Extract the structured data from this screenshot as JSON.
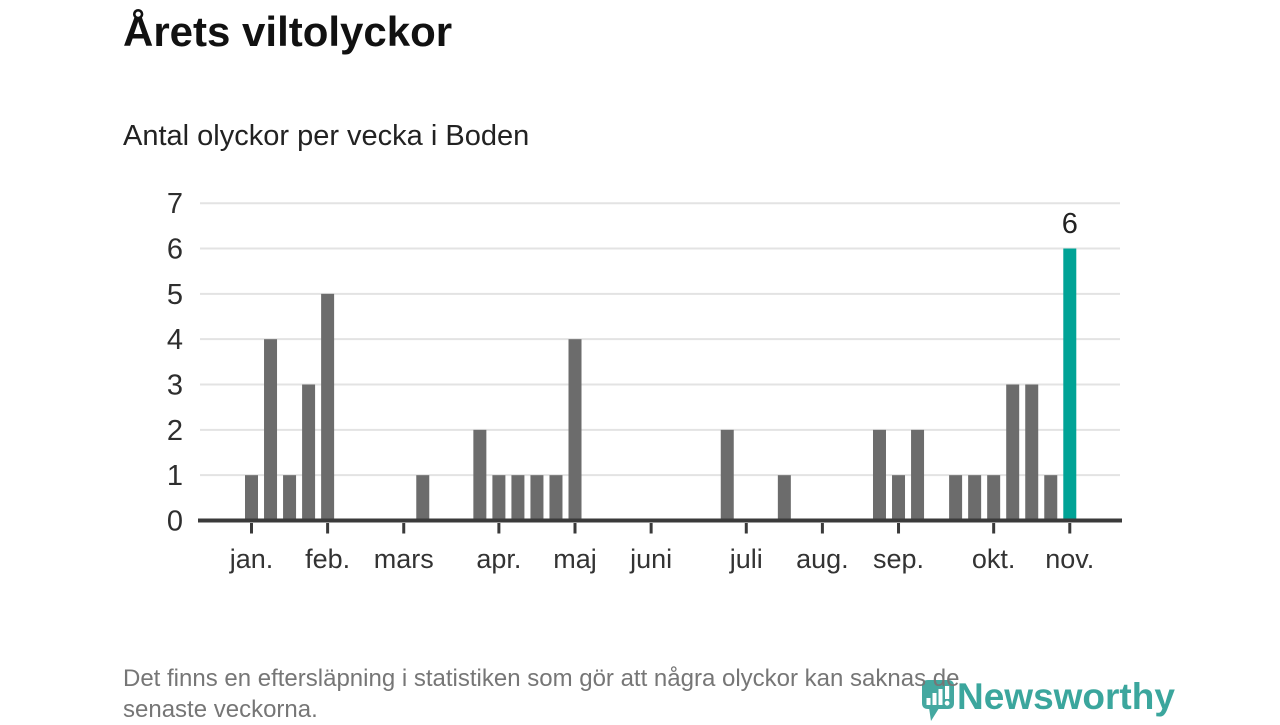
{
  "title": "Årets viltolyckor",
  "subtitle": "Antal olyckor per vecka i Boden",
  "footer": {
    "line1": "Det finns en eftersläpning i statistiken som gör att några olyckor kan saknas de",
    "line2": "senaste veckorna."
  },
  "logo": {
    "text": "Newsworthy",
    "icon": "newsworthy-pin-barchart-icon"
  },
  "colors": {
    "bar": "#6c6c6c",
    "highlight": "#00a396",
    "axis": "#3a3a3a",
    "grid": "#e3e3e3",
    "tick_label": "#2e2e2e",
    "annotation": "#222222",
    "logo": "#3ba69d",
    "footer_text": "#767676"
  },
  "chart_data": {
    "type": "bar",
    "title": "Årets viltolyckor",
    "subtitle": "Antal olyckor per vecka i Boden",
    "x_unit": "week",
    "values": [
      1,
      4,
      1,
      3,
      5,
      0,
      0,
      0,
      0,
      1,
      0,
      0,
      2,
      1,
      1,
      1,
      1,
      4,
      0,
      0,
      0,
      0,
      0,
      0,
      0,
      2,
      0,
      0,
      1,
      0,
      0,
      0,
      0,
      2,
      1,
      2,
      0,
      1,
      1,
      1,
      3,
      3,
      1,
      6
    ],
    "highlight_index": 43,
    "annotation": {
      "index": 43,
      "label": "6"
    },
    "month_ticks": [
      {
        "week": 0,
        "label": "jan."
      },
      {
        "week": 4,
        "label": "feb."
      },
      {
        "week": 8,
        "label": "mars"
      },
      {
        "week": 13,
        "label": "apr."
      },
      {
        "week": 17,
        "label": "maj"
      },
      {
        "week": 21,
        "label": "juni"
      },
      {
        "week": 26,
        "label": "juli"
      },
      {
        "week": 30,
        "label": "aug."
      },
      {
        "week": 34,
        "label": "sep."
      },
      {
        "week": 39,
        "label": "okt."
      },
      {
        "week": 43,
        "label": "nov."
      }
    ],
    "ylim": [
      0,
      7
    ],
    "yticks": [
      0,
      1,
      2,
      3,
      4,
      5,
      6,
      7
    ],
    "grid": "horizontal",
    "legend": "none"
  }
}
